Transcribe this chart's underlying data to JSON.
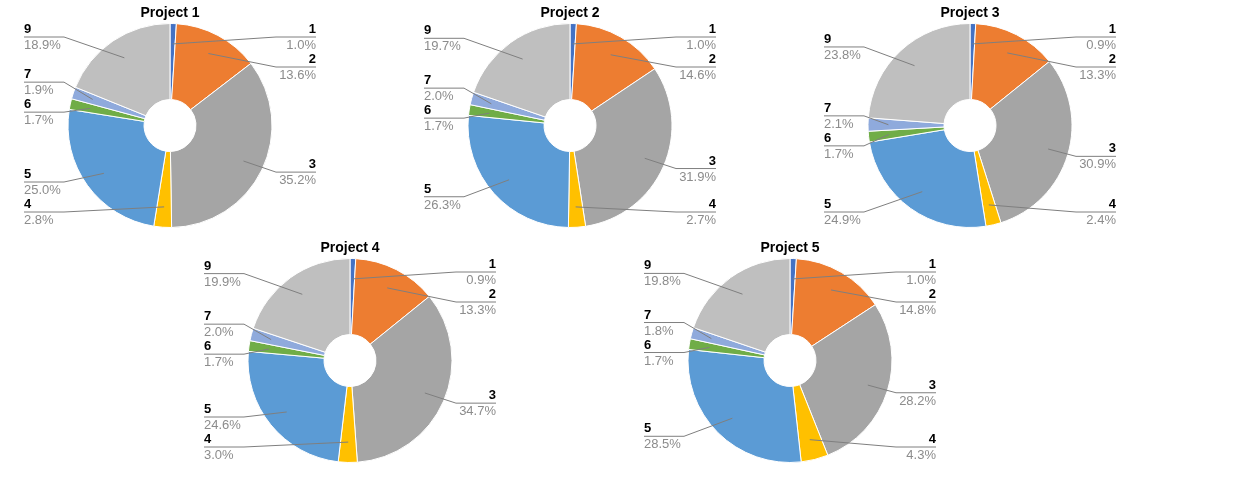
{
  "chart_data": [
    {
      "type": "donut",
      "title": "Project 1",
      "categories": [
        "1",
        "2",
        "3",
        "4",
        "5",
        "6",
        "7",
        "9"
      ],
      "values": [
        1.0,
        13.6,
        35.2,
        2.8,
        25.0,
        1.7,
        1.9,
        18.9
      ],
      "value_labels": [
        "1.0%",
        "13.6%",
        "35.2%",
        "2.8%",
        "25.0%",
        "1.7%",
        "1.9%",
        "18.9%"
      ],
      "colors": [
        "#4472c4",
        "#ed7d31",
        "#a5a5a5",
        "#ffc000",
        "#5b9bd5",
        "#70ad47",
        "#8faadc",
        "#bfbfbf"
      ],
      "legend": false
    },
    {
      "type": "donut",
      "title": "Project 2",
      "categories": [
        "1",
        "2",
        "3",
        "4",
        "5",
        "6",
        "7",
        "9"
      ],
      "values": [
        1.0,
        14.6,
        31.9,
        2.7,
        26.3,
        1.7,
        2.0,
        19.7
      ],
      "value_labels": [
        "1.0%",
        "14.6%",
        "31.9%",
        "2.7%",
        "26.3%",
        "1.7%",
        "2.0%",
        "19.7%"
      ],
      "colors": [
        "#4472c4",
        "#ed7d31",
        "#a5a5a5",
        "#ffc000",
        "#5b9bd5",
        "#70ad47",
        "#8faadc",
        "#bfbfbf"
      ],
      "legend": false
    },
    {
      "type": "donut",
      "title": "Project 3",
      "categories": [
        "1",
        "2",
        "3",
        "4",
        "5",
        "6",
        "7",
        "9"
      ],
      "values": [
        0.9,
        13.3,
        30.9,
        2.4,
        24.9,
        1.7,
        2.1,
        23.8
      ],
      "value_labels": [
        "0.9%",
        "13.3%",
        "30.9%",
        "2.4%",
        "24.9%",
        "1.7%",
        "2.1%",
        "23.8%"
      ],
      "colors": [
        "#4472c4",
        "#ed7d31",
        "#a5a5a5",
        "#ffc000",
        "#5b9bd5",
        "#70ad47",
        "#8faadc",
        "#bfbfbf"
      ],
      "legend": false
    },
    {
      "type": "donut",
      "title": "Project 4",
      "categories": [
        "1",
        "2",
        "3",
        "4",
        "5",
        "6",
        "7",
        "9"
      ],
      "values": [
        0.9,
        13.3,
        34.7,
        3.0,
        24.6,
        1.7,
        2.0,
        19.9
      ],
      "value_labels": [
        "0.9%",
        "13.3%",
        "34.7%",
        "3.0%",
        "24.6%",
        "1.7%",
        "2.0%",
        "19.9%"
      ],
      "colors": [
        "#4472c4",
        "#ed7d31",
        "#a5a5a5",
        "#ffc000",
        "#5b9bd5",
        "#70ad47",
        "#8faadc",
        "#bfbfbf"
      ],
      "legend": false
    },
    {
      "type": "donut",
      "title": "Project 5",
      "categories": [
        "1",
        "2",
        "3",
        "4",
        "5",
        "6",
        "7",
        "9"
      ],
      "values": [
        1.0,
        14.8,
        28.2,
        4.3,
        28.5,
        1.7,
        1.8,
        19.8
      ],
      "value_labels": [
        "1.0%",
        "14.8%",
        "28.2%",
        "4.3%",
        "28.5%",
        "1.7%",
        "1.8%",
        "19.8%"
      ],
      "colors": [
        "#4472c4",
        "#ed7d31",
        "#a5a5a5",
        "#ffc000",
        "#5b9bd5",
        "#70ad47",
        "#8faadc",
        "#bfbfbf"
      ],
      "legend": false
    }
  ]
}
